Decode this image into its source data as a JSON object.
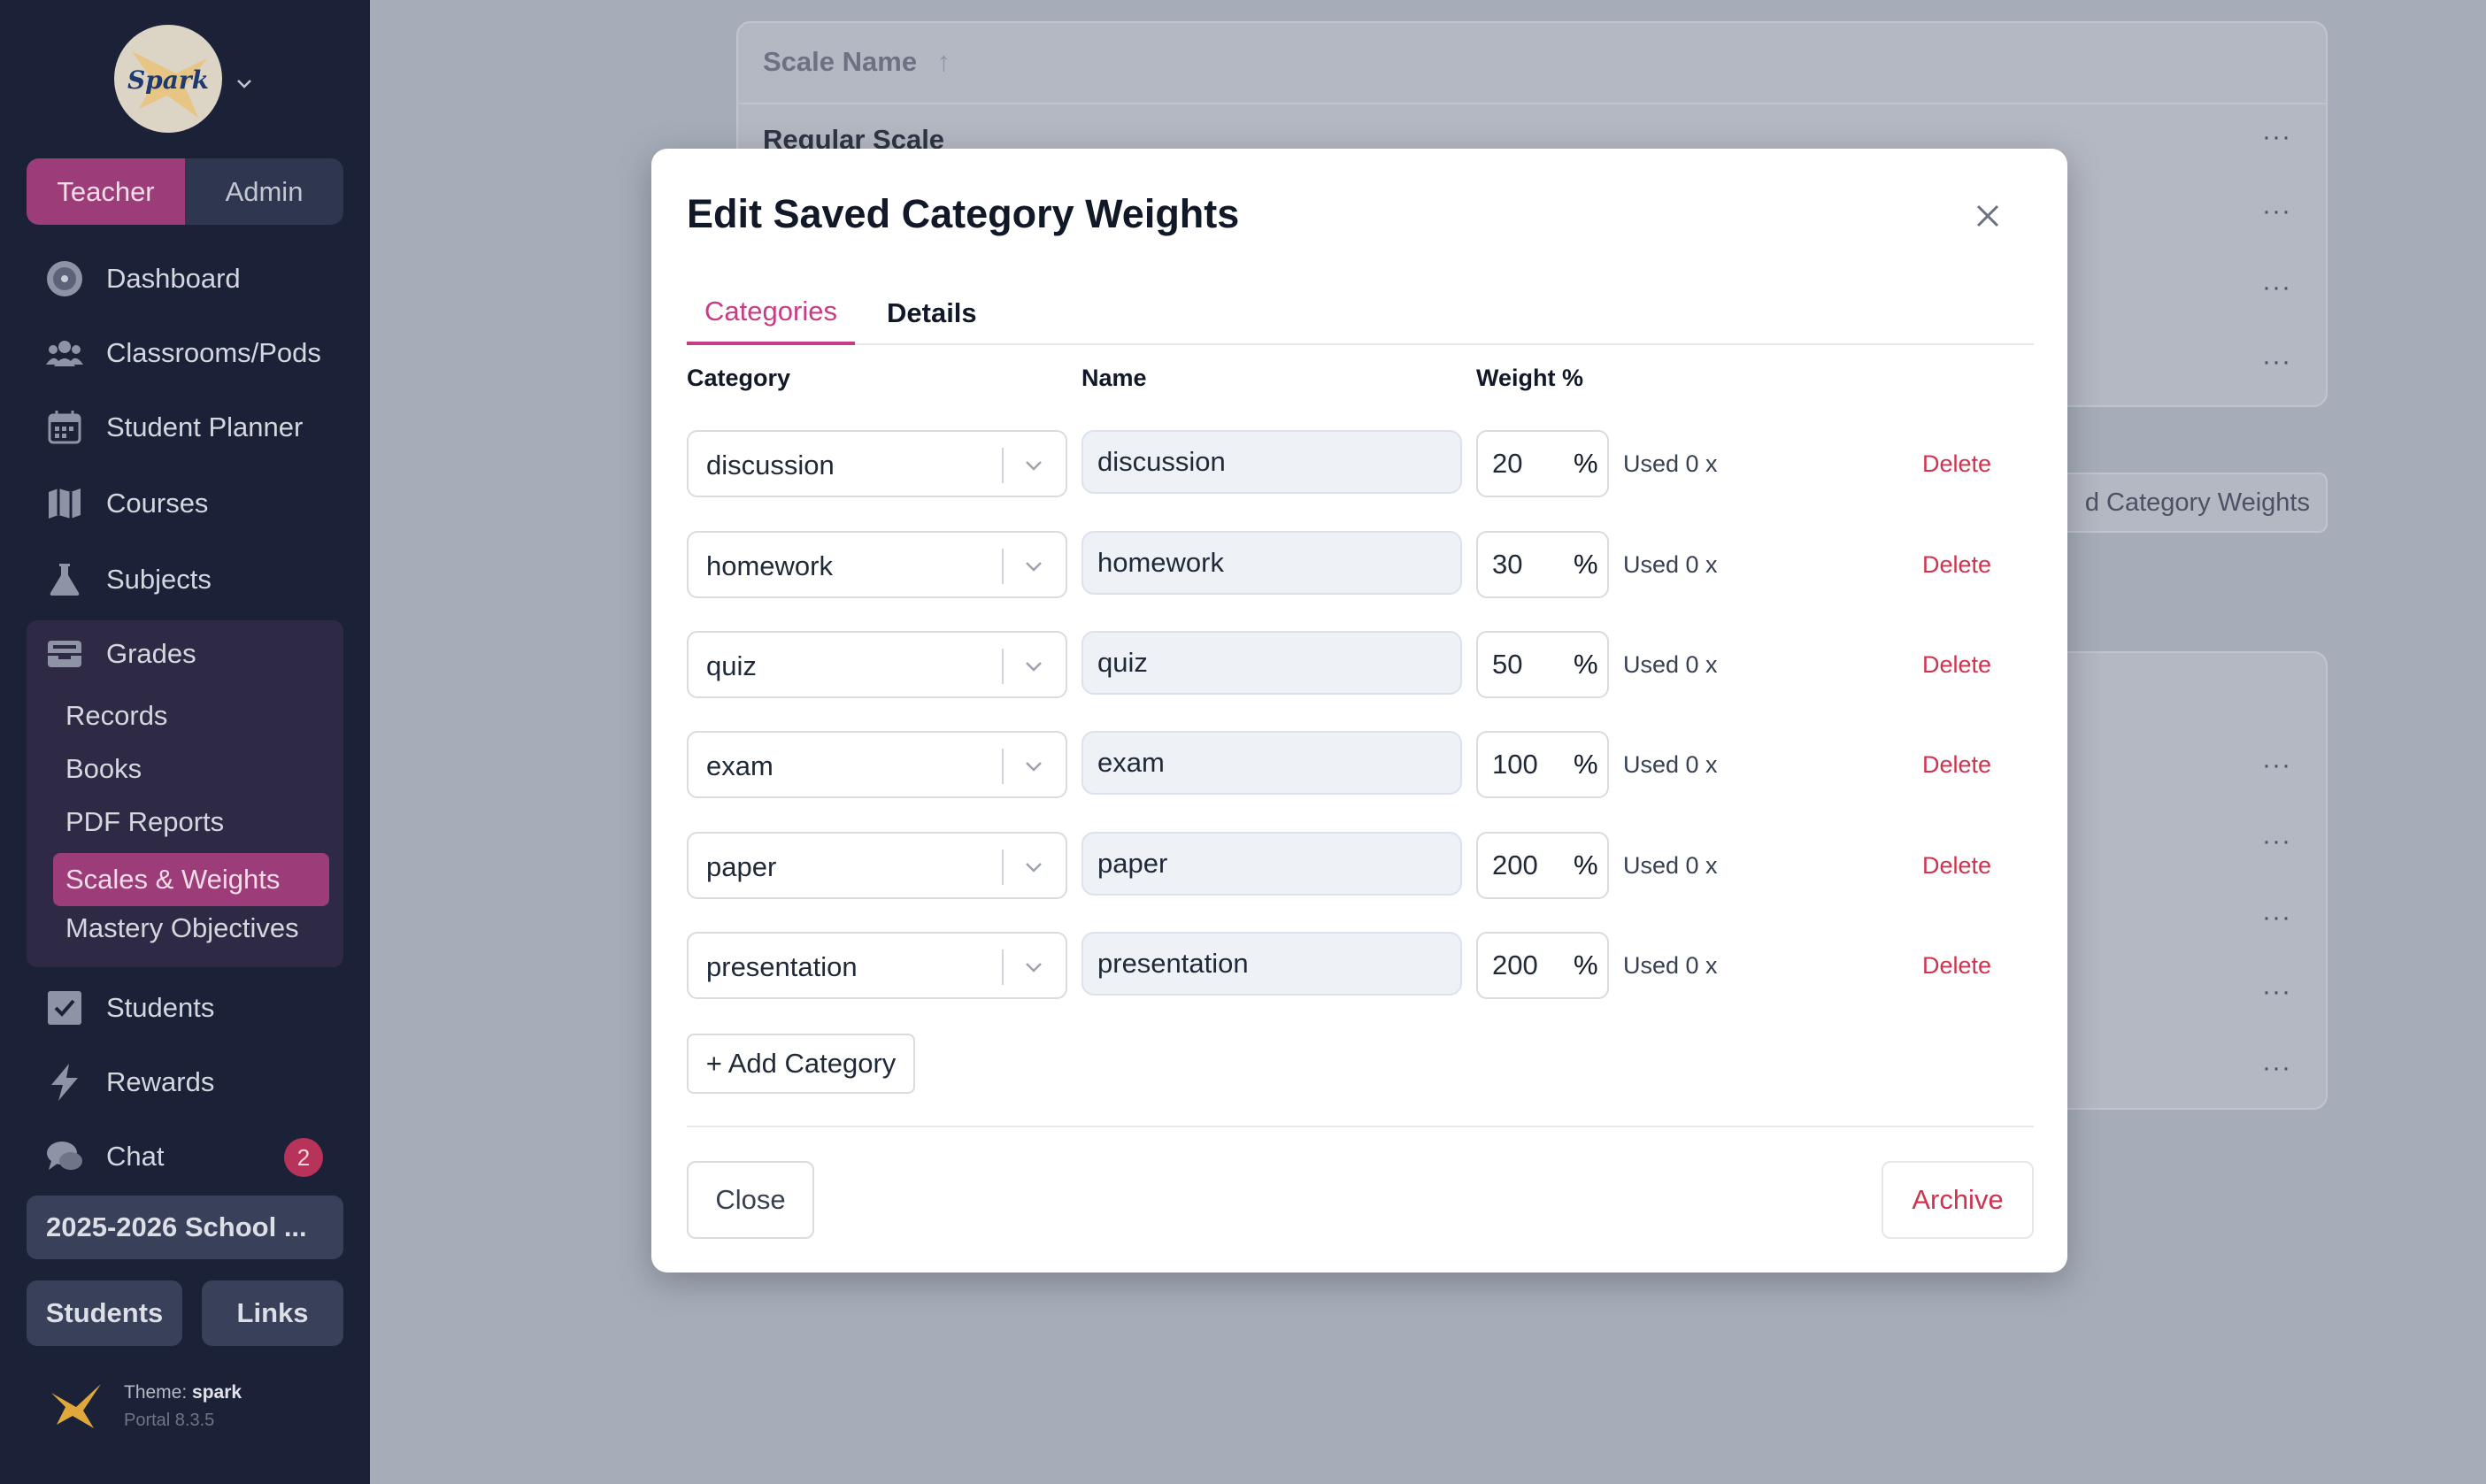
{
  "sidebar": {
    "logo_text": "Spark",
    "roles": [
      "Teacher",
      "Admin"
    ],
    "nav": {
      "dashboard": "Dashboard",
      "classrooms": "Classrooms/Pods",
      "planner": "Student Planner",
      "courses": "Courses",
      "subjects": "Subjects",
      "grades": "Grades",
      "students": "Students",
      "rewards": "Rewards",
      "chat": "Chat"
    },
    "grades_sub": [
      "Records",
      "Books",
      "PDF Reports",
      "Scales & Weights",
      "Mastery Objectives"
    ],
    "chat_badge": "2",
    "school_year": "2025-2026 School ...",
    "bottom_buttons": [
      "Students",
      "Links"
    ],
    "theme_label": "Theme:",
    "theme_name": "spark",
    "portal_version": "Portal 8.3.5",
    "accent_color": "#9c3d7a"
  },
  "background": {
    "table_header": "Scale Name",
    "first_row": "Regular Scale",
    "pill_text": "d Category Weights",
    "row_menu": "···"
  },
  "modal": {
    "title": "Edit Saved Category Weights",
    "tabs": [
      "Categories",
      "Details"
    ],
    "columns": {
      "category": "Category",
      "name": "Name",
      "weight": "Weight %"
    },
    "rows": [
      {
        "category": "discussion",
        "name": "discussion",
        "weight": "20",
        "used": "Used 0 x",
        "delete": "Delete"
      },
      {
        "category": "homework",
        "name": "homework",
        "weight": "30",
        "used": "Used 0 x",
        "delete": "Delete"
      },
      {
        "category": "quiz",
        "name": "quiz",
        "weight": "50",
        "used": "Used 0 x",
        "delete": "Delete"
      },
      {
        "category": "exam",
        "name": "exam",
        "weight": "100",
        "used": "Used 0 x",
        "delete": "Delete"
      },
      {
        "category": "paper",
        "name": "paper",
        "weight": "200",
        "used": "Used 0 x",
        "delete": "Delete"
      },
      {
        "category": "presentation",
        "name": "presentation",
        "weight": "200",
        "used": "Used 0 x",
        "delete": "Delete"
      }
    ],
    "percent_symbol": "%",
    "add_category": "+ Add Category",
    "close_button": "Close",
    "archive_button": "Archive",
    "accent_color": "#c73c84",
    "danger_color": "#d0334f"
  }
}
